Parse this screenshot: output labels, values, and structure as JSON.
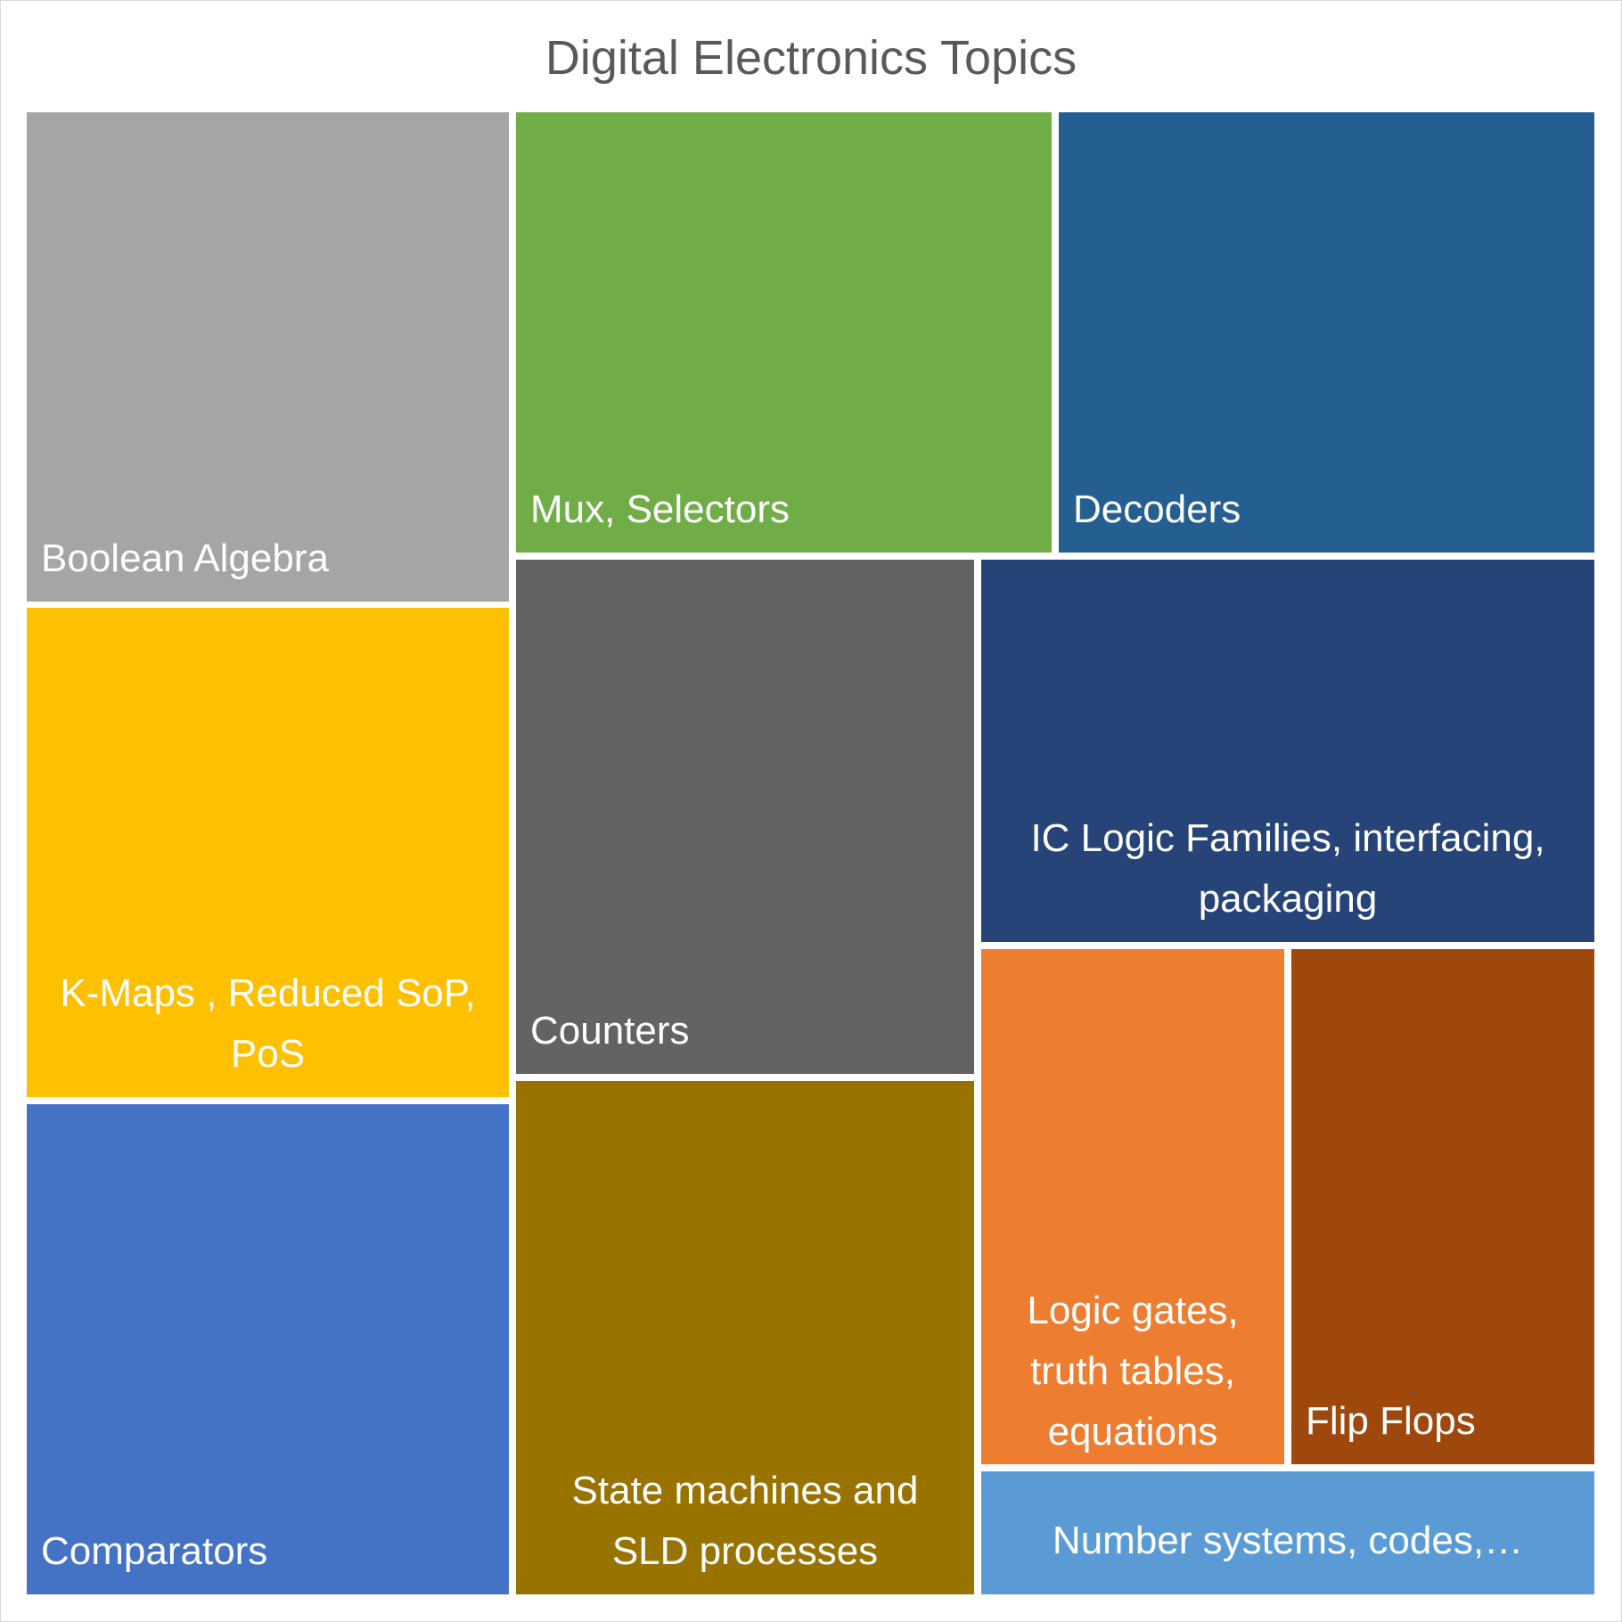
{
  "chart_data": {
    "type": "treemap",
    "title": "Digital Electronics Topics",
    "items": [
      {
        "label": "Boolean Algebra",
        "color": "#A5A5A5"
      },
      {
        "label": "K-Maps , Reduced SoP,\nPoS",
        "color": "#FFC000"
      },
      {
        "label": "Comparators",
        "color": "#4472C4"
      },
      {
        "label": "Mux, Selectors",
        "color": "#70AD47"
      },
      {
        "label": "Decoders",
        "color": "#255E91"
      },
      {
        "label": "Counters",
        "color": "#636363"
      },
      {
        "label": "State machines and\nSLD processes",
        "color": "#997300"
      },
      {
        "label": "IC Logic Families, interfacing,\npackaging",
        "color": "#264478"
      },
      {
        "label": "Logic gates,\ntruth tables,\nequations",
        "color": "#ED7D31"
      },
      {
        "label": "Flip Flops",
        "color": "#9E480E"
      },
      {
        "label": "Number systems, codes,…",
        "color": "#5B9BD5"
      }
    ]
  }
}
